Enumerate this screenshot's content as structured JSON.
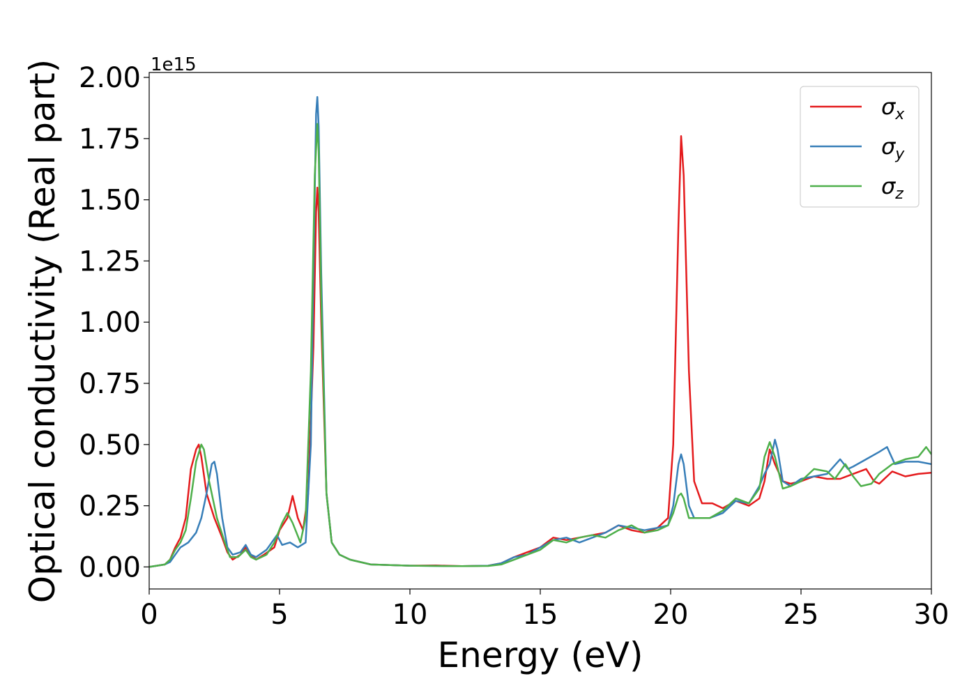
{
  "chart_data": {
    "type": "line",
    "xlabel": "Energy (eV)",
    "ylabel": "Optical conductivity (Real part)",
    "offset_text": "1e15",
    "xlim": [
      0,
      30
    ],
    "ylim": [
      -0.09,
      2.02
    ],
    "x_ticks": [
      "0",
      "5",
      "10",
      "15",
      "20",
      "25",
      "30"
    ],
    "x_tick_values": [
      0,
      5,
      10,
      15,
      20,
      25,
      30
    ],
    "y_ticks": [
      "0.00",
      "0.25",
      "0.50",
      "0.75",
      "1.00",
      "1.25",
      "1.50",
      "1.75",
      "2.00"
    ],
    "y_tick_values": [
      0,
      0.25,
      0.5,
      0.75,
      1.0,
      1.25,
      1.5,
      1.75,
      2.0
    ],
    "grid": false,
    "legend_position": "top-right",
    "series": [
      {
        "name": "σx",
        "symbol": "σ",
        "subscript": "x",
        "color": "#e41a1c",
        "points": [
          [
            0,
            0
          ],
          [
            0.3,
            0.005
          ],
          [
            0.6,
            0.01
          ],
          [
            0.8,
            0.03
          ],
          [
            1.0,
            0.08
          ],
          [
            1.2,
            0.12
          ],
          [
            1.4,
            0.2
          ],
          [
            1.6,
            0.4
          ],
          [
            1.8,
            0.48
          ],
          [
            1.9,
            0.5
          ],
          [
            2.0,
            0.45
          ],
          [
            2.2,
            0.3
          ],
          [
            2.5,
            0.2
          ],
          [
            2.8,
            0.12
          ],
          [
            3.0,
            0.06
          ],
          [
            3.2,
            0.03
          ],
          [
            3.5,
            0.05
          ],
          [
            3.7,
            0.08
          ],
          [
            3.9,
            0.05
          ],
          [
            4.1,
            0.03
          ],
          [
            4.4,
            0.05
          ],
          [
            4.8,
            0.08
          ],
          [
            5.0,
            0.15
          ],
          [
            5.3,
            0.2
          ],
          [
            5.5,
            0.29
          ],
          [
            5.7,
            0.2
          ],
          [
            5.9,
            0.15
          ],
          [
            6.1,
            0.3
          ],
          [
            6.3,
            0.9
          ],
          [
            6.4,
            1.45
          ],
          [
            6.45,
            1.55
          ],
          [
            6.5,
            1.45
          ],
          [
            6.6,
            1.0
          ],
          [
            6.8,
            0.3
          ],
          [
            7.0,
            0.1
          ],
          [
            7.3,
            0.05
          ],
          [
            7.7,
            0.03
          ],
          [
            8.5,
            0.01
          ],
          [
            10,
            0.005
          ],
          [
            11,
            0.006
          ],
          [
            12,
            0.003
          ],
          [
            13,
            0.005
          ],
          [
            13.5,
            0.015
          ],
          [
            14,
            0.04
          ],
          [
            14.5,
            0.06
          ],
          [
            15,
            0.08
          ],
          [
            15.5,
            0.12
          ],
          [
            16,
            0.11
          ],
          [
            16.5,
            0.12
          ],
          [
            17,
            0.13
          ],
          [
            17.5,
            0.14
          ],
          [
            18,
            0.17
          ],
          [
            18.5,
            0.15
          ],
          [
            19,
            0.14
          ],
          [
            19.5,
            0.16
          ],
          [
            19.9,
            0.2
          ],
          [
            20.1,
            0.5
          ],
          [
            20.3,
            1.4
          ],
          [
            20.4,
            1.76
          ],
          [
            20.5,
            1.6
          ],
          [
            20.7,
            0.8
          ],
          [
            20.9,
            0.35
          ],
          [
            21.2,
            0.26
          ],
          [
            21.6,
            0.26
          ],
          [
            22,
            0.24
          ],
          [
            22.5,
            0.27
          ],
          [
            23,
            0.25
          ],
          [
            23.4,
            0.28
          ],
          [
            23.6,
            0.35
          ],
          [
            23.8,
            0.48
          ],
          [
            24.0,
            0.42
          ],
          [
            24.3,
            0.35
          ],
          [
            24.6,
            0.34
          ],
          [
            25,
            0.35
          ],
          [
            25.5,
            0.37
          ],
          [
            26,
            0.36
          ],
          [
            26.5,
            0.36
          ],
          [
            27,
            0.38
          ],
          [
            27.5,
            0.4
          ],
          [
            27.8,
            0.35
          ],
          [
            28,
            0.34
          ],
          [
            28.5,
            0.39
          ],
          [
            29,
            0.37
          ],
          [
            29.5,
            0.38
          ],
          [
            30,
            0.385
          ]
        ]
      },
      {
        "name": "σy",
        "symbol": "σ",
        "subscript": "y",
        "color": "#377eb8",
        "points": [
          [
            0,
            0
          ],
          [
            0.3,
            0.005
          ],
          [
            0.6,
            0.01
          ],
          [
            0.8,
            0.02
          ],
          [
            1.0,
            0.05
          ],
          [
            1.2,
            0.08
          ],
          [
            1.5,
            0.1
          ],
          [
            1.8,
            0.14
          ],
          [
            2.0,
            0.2
          ],
          [
            2.2,
            0.3
          ],
          [
            2.4,
            0.42
          ],
          [
            2.5,
            0.43
          ],
          [
            2.6,
            0.38
          ],
          [
            2.8,
            0.2
          ],
          [
            3.0,
            0.08
          ],
          [
            3.2,
            0.05
          ],
          [
            3.5,
            0.06
          ],
          [
            3.7,
            0.09
          ],
          [
            3.9,
            0.05
          ],
          [
            4.1,
            0.04
          ],
          [
            4.5,
            0.07
          ],
          [
            4.9,
            0.13
          ],
          [
            5.1,
            0.09
          ],
          [
            5.4,
            0.1
          ],
          [
            5.7,
            0.08
          ],
          [
            6.0,
            0.1
          ],
          [
            6.2,
            0.5
          ],
          [
            6.3,
            1.2
          ],
          [
            6.4,
            1.85
          ],
          [
            6.45,
            1.92
          ],
          [
            6.5,
            1.8
          ],
          [
            6.6,
            1.2
          ],
          [
            6.8,
            0.3
          ],
          [
            7.0,
            0.1
          ],
          [
            7.3,
            0.05
          ],
          [
            7.7,
            0.03
          ],
          [
            8.5,
            0.01
          ],
          [
            10,
            0.005
          ],
          [
            11,
            0.004
          ],
          [
            12,
            0.003
          ],
          [
            13,
            0.005
          ],
          [
            13.5,
            0.015
          ],
          [
            14,
            0.04
          ],
          [
            14.5,
            0.05
          ],
          [
            15,
            0.08
          ],
          [
            15.5,
            0.11
          ],
          [
            16,
            0.12
          ],
          [
            16.5,
            0.1
          ],
          [
            17,
            0.12
          ],
          [
            17.5,
            0.14
          ],
          [
            18,
            0.17
          ],
          [
            18.5,
            0.16
          ],
          [
            19,
            0.15
          ],
          [
            19.5,
            0.16
          ],
          [
            19.9,
            0.17
          ],
          [
            20.1,
            0.25
          ],
          [
            20.3,
            0.42
          ],
          [
            20.4,
            0.46
          ],
          [
            20.5,
            0.42
          ],
          [
            20.7,
            0.25
          ],
          [
            20.9,
            0.2
          ],
          [
            21.5,
            0.2
          ],
          [
            22,
            0.22
          ],
          [
            22.5,
            0.27
          ],
          [
            23,
            0.26
          ],
          [
            23.4,
            0.33
          ],
          [
            23.6,
            0.38
          ],
          [
            23.8,
            0.42
          ],
          [
            24.0,
            0.52
          ],
          [
            24.1,
            0.48
          ],
          [
            24.3,
            0.35
          ],
          [
            24.6,
            0.33
          ],
          [
            25,
            0.36
          ],
          [
            25.5,
            0.37
          ],
          [
            26,
            0.38
          ],
          [
            26.5,
            0.44
          ],
          [
            26.8,
            0.4
          ],
          [
            27,
            0.41
          ],
          [
            27.5,
            0.44
          ],
          [
            28,
            0.47
          ],
          [
            28.3,
            0.49
          ],
          [
            28.6,
            0.42
          ],
          [
            29,
            0.43
          ],
          [
            29.5,
            0.43
          ],
          [
            30,
            0.42
          ]
        ]
      },
      {
        "name": "σz",
        "symbol": "σ",
        "subscript": "z",
        "color": "#4daf4a",
        "points": [
          [
            0,
            0
          ],
          [
            0.3,
            0.005
          ],
          [
            0.6,
            0.01
          ],
          [
            0.8,
            0.03
          ],
          [
            1.0,
            0.07
          ],
          [
            1.2,
            0.1
          ],
          [
            1.4,
            0.15
          ],
          [
            1.6,
            0.28
          ],
          [
            1.8,
            0.43
          ],
          [
            2.0,
            0.5
          ],
          [
            2.1,
            0.48
          ],
          [
            2.3,
            0.35
          ],
          [
            2.6,
            0.2
          ],
          [
            2.9,
            0.1
          ],
          [
            3.1,
            0.04
          ],
          [
            3.4,
            0.04
          ],
          [
            3.7,
            0.07
          ],
          [
            3.9,
            0.04
          ],
          [
            4.1,
            0.03
          ],
          [
            4.5,
            0.05
          ],
          [
            4.8,
            0.1
          ],
          [
            5.1,
            0.18
          ],
          [
            5.3,
            0.22
          ],
          [
            5.5,
            0.18
          ],
          [
            5.8,
            0.1
          ],
          [
            6.0,
            0.2
          ],
          [
            6.2,
            0.8
          ],
          [
            6.35,
            1.6
          ],
          [
            6.45,
            1.81
          ],
          [
            6.5,
            1.7
          ],
          [
            6.6,
            1.1
          ],
          [
            6.8,
            0.3
          ],
          [
            7.0,
            0.1
          ],
          [
            7.3,
            0.05
          ],
          [
            7.7,
            0.03
          ],
          [
            8.5,
            0.01
          ],
          [
            10,
            0.005
          ],
          [
            11,
            0.004
          ],
          [
            12,
            0.003
          ],
          [
            13,
            0.004
          ],
          [
            13.5,
            0.01
          ],
          [
            14,
            0.03
          ],
          [
            14.5,
            0.05
          ],
          [
            15,
            0.07
          ],
          [
            15.5,
            0.11
          ],
          [
            16,
            0.1
          ],
          [
            16.5,
            0.12
          ],
          [
            17,
            0.13
          ],
          [
            17.5,
            0.12
          ],
          [
            18,
            0.15
          ],
          [
            18.5,
            0.17
          ],
          [
            19,
            0.14
          ],
          [
            19.5,
            0.15
          ],
          [
            19.9,
            0.17
          ],
          [
            20.1,
            0.22
          ],
          [
            20.3,
            0.29
          ],
          [
            20.4,
            0.3
          ],
          [
            20.5,
            0.28
          ],
          [
            20.7,
            0.2
          ],
          [
            20.9,
            0.2
          ],
          [
            21.5,
            0.2
          ],
          [
            22,
            0.23
          ],
          [
            22.5,
            0.28
          ],
          [
            23,
            0.26
          ],
          [
            23.4,
            0.32
          ],
          [
            23.6,
            0.45
          ],
          [
            23.8,
            0.51
          ],
          [
            24.0,
            0.45
          ],
          [
            24.3,
            0.32
          ],
          [
            24.6,
            0.33
          ],
          [
            25,
            0.35
          ],
          [
            25.5,
            0.4
          ],
          [
            26,
            0.39
          ],
          [
            26.3,
            0.36
          ],
          [
            26.7,
            0.42
          ],
          [
            27,
            0.37
          ],
          [
            27.3,
            0.33
          ],
          [
            27.7,
            0.34
          ],
          [
            28,
            0.38
          ],
          [
            28.5,
            0.42
          ],
          [
            29,
            0.44
          ],
          [
            29.5,
            0.45
          ],
          [
            29.8,
            0.49
          ],
          [
            30,
            0.46
          ]
        ]
      }
    ]
  }
}
